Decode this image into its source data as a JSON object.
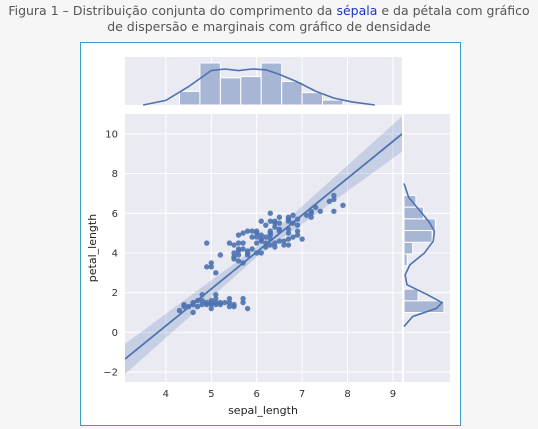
{
  "caption": {
    "line1_a": "Figura 1 – Distribuição conjunta do comprimento da ",
    "line1_link": "sépala",
    "line1_b": " e da pétala com gráfico",
    "line2": "de dispersão e marginais com gráfico de densidade"
  },
  "chart_data": {
    "type": "scatter",
    "xlabel": "sepal_length",
    "ylabel": "petal_length",
    "xlim": [
      3.1,
      9.2
    ],
    "ylim": [
      -2.5,
      11.0
    ],
    "xticks": [
      4,
      5,
      6,
      7,
      8,
      9
    ],
    "yticks": [
      -2,
      0,
      2,
      4,
      6,
      8,
      10
    ],
    "grid": true,
    "colors": {
      "marker": "#4c72b0",
      "bar": "#a8b6d6",
      "panel": "#eaeaf2"
    },
    "points": [
      [
        4.3,
        1.1
      ],
      [
        4.4,
        1.3
      ],
      [
        4.4,
        1.4
      ],
      [
        4.5,
        1.3
      ],
      [
        4.6,
        1.0
      ],
      [
        4.6,
        1.4
      ],
      [
        4.6,
        1.5
      ],
      [
        4.7,
        1.3
      ],
      [
        4.7,
        1.6
      ],
      [
        4.8,
        1.4
      ],
      [
        4.8,
        1.6
      ],
      [
        4.8,
        1.9
      ],
      [
        4.9,
        1.4
      ],
      [
        4.9,
        1.5
      ],
      [
        4.9,
        3.3
      ],
      [
        4.9,
        4.5
      ],
      [
        5.0,
        1.2
      ],
      [
        5.0,
        1.4
      ],
      [
        5.0,
        1.5
      ],
      [
        5.0,
        1.6
      ],
      [
        5.0,
        3.3
      ],
      [
        5.0,
        3.5
      ],
      [
        5.1,
        1.4
      ],
      [
        5.1,
        1.5
      ],
      [
        5.1,
        1.7
      ],
      [
        5.1,
        1.9
      ],
      [
        5.1,
        3.0
      ],
      [
        5.2,
        1.4
      ],
      [
        5.2,
        1.5
      ],
      [
        5.2,
        3.9
      ],
      [
        5.3,
        1.5
      ],
      [
        5.4,
        1.3
      ],
      [
        5.4,
        1.5
      ],
      [
        5.4,
        1.7
      ],
      [
        5.4,
        4.5
      ],
      [
        5.5,
        1.3
      ],
      [
        5.5,
        1.4
      ],
      [
        5.5,
        3.7
      ],
      [
        5.5,
        3.8
      ],
      [
        5.5,
        4.0
      ],
      [
        5.5,
        4.4
      ],
      [
        5.6,
        3.6
      ],
      [
        5.6,
        3.9
      ],
      [
        5.6,
        4.1
      ],
      [
        5.6,
        4.2
      ],
      [
        5.6,
        4.5
      ],
      [
        5.6,
        4.9
      ],
      [
        5.7,
        1.5
      ],
      [
        5.7,
        1.7
      ],
      [
        5.7,
        3.5
      ],
      [
        5.7,
        4.2
      ],
      [
        5.7,
        4.5
      ],
      [
        5.7,
        5.0
      ],
      [
        5.8,
        1.2
      ],
      [
        5.8,
        3.9
      ],
      [
        5.8,
        4.0
      ],
      [
        5.8,
        4.1
      ],
      [
        5.8,
        5.1
      ],
      [
        5.9,
        4.2
      ],
      [
        5.9,
        4.8
      ],
      [
        5.9,
        5.1
      ],
      [
        6.0,
        4.0
      ],
      [
        6.0,
        4.5
      ],
      [
        6.0,
        4.8
      ],
      [
        6.0,
        5.0
      ],
      [
        6.0,
        5.1
      ],
      [
        6.1,
        4.0
      ],
      [
        6.1,
        4.6
      ],
      [
        6.1,
        4.7
      ],
      [
        6.1,
        4.9
      ],
      [
        6.1,
        5.6
      ],
      [
        6.2,
        4.3
      ],
      [
        6.2,
        4.5
      ],
      [
        6.2,
        4.8
      ],
      [
        6.2,
        5.4
      ],
      [
        6.3,
        4.4
      ],
      [
        6.3,
        4.7
      ],
      [
        6.3,
        4.9
      ],
      [
        6.3,
        5.0
      ],
      [
        6.3,
        5.1
      ],
      [
        6.3,
        5.6
      ],
      [
        6.3,
        6.0
      ],
      [
        6.4,
        4.3
      ],
      [
        6.4,
        4.5
      ],
      [
        6.4,
        5.3
      ],
      [
        6.4,
        5.5
      ],
      [
        6.4,
        5.6
      ],
      [
        6.5,
        4.6
      ],
      [
        6.5,
        5.1
      ],
      [
        6.5,
        5.2
      ],
      [
        6.5,
        5.5
      ],
      [
        6.5,
        5.8
      ],
      [
        6.6,
        4.4
      ],
      [
        6.6,
        4.6
      ],
      [
        6.7,
        4.4
      ],
      [
        6.7,
        4.7
      ],
      [
        6.7,
        5.0
      ],
      [
        6.7,
        5.2
      ],
      [
        6.7,
        5.6
      ],
      [
        6.7,
        5.7
      ],
      [
        6.7,
        5.8
      ],
      [
        6.8,
        4.8
      ],
      [
        6.8,
        5.5
      ],
      [
        6.8,
        5.9
      ],
      [
        6.9,
        4.9
      ],
      [
        6.9,
        5.1
      ],
      [
        6.9,
        5.4
      ],
      [
        6.9,
        5.7
      ],
      [
        7.0,
        4.7
      ],
      [
        7.1,
        5.9
      ],
      [
        7.2,
        5.8
      ],
      [
        7.2,
        6.0
      ],
      [
        7.2,
        6.1
      ],
      [
        7.3,
        6.3
      ],
      [
        7.4,
        6.1
      ],
      [
        7.6,
        6.6
      ],
      [
        7.7,
        6.1
      ],
      [
        7.7,
        6.7
      ],
      [
        7.7,
        6.9
      ],
      [
        7.9,
        6.4
      ]
    ],
    "regression": {
      "slope": 1.858,
      "intercept": -7.101,
      "ci_halfwidth": 0.22
    },
    "marginal_x": {
      "bins": [
        4.3,
        4.75,
        5.2,
        5.65,
        6.1,
        6.55,
        7.0,
        7.45,
        7.9
      ],
      "counts": [
        11,
        34,
        22,
        23,
        34,
        19,
        10,
        4
      ],
      "kde": [
        [
          3.5,
          0.0
        ],
        [
          4.0,
          0.06
        ],
        [
          4.5,
          0.24
        ],
        [
          5.0,
          0.45
        ],
        [
          5.3,
          0.47
        ],
        [
          5.6,
          0.45
        ],
        [
          5.9,
          0.47
        ],
        [
          6.2,
          0.46
        ],
        [
          6.5,
          0.4
        ],
        [
          6.9,
          0.3
        ],
        [
          7.3,
          0.18
        ],
        [
          7.7,
          0.09
        ],
        [
          8.1,
          0.04
        ],
        [
          8.6,
          0.0
        ]
      ]
    },
    "marginal_y": {
      "bins": [
        1.0,
        1.59,
        2.18,
        2.77,
        3.36,
        3.95,
        4.54,
        5.13,
        5.72,
        6.31,
        6.9
      ],
      "counts": [
        37,
        13,
        0,
        0,
        3,
        8,
        26,
        29,
        18,
        11
      ],
      "kde": [
        [
          0.3,
          0.0
        ],
        [
          0.8,
          0.15
        ],
        [
          1.2,
          0.55
        ],
        [
          1.5,
          0.65
        ],
        [
          1.9,
          0.4
        ],
        [
          2.4,
          0.05
        ],
        [
          2.9,
          0.02
        ],
        [
          3.4,
          0.1
        ],
        [
          4.0,
          0.35
        ],
        [
          4.6,
          0.5
        ],
        [
          5.1,
          0.52
        ],
        [
          5.6,
          0.42
        ],
        [
          6.2,
          0.25
        ],
        [
          6.8,
          0.08
        ],
        [
          7.5,
          0.0
        ]
      ]
    }
  }
}
